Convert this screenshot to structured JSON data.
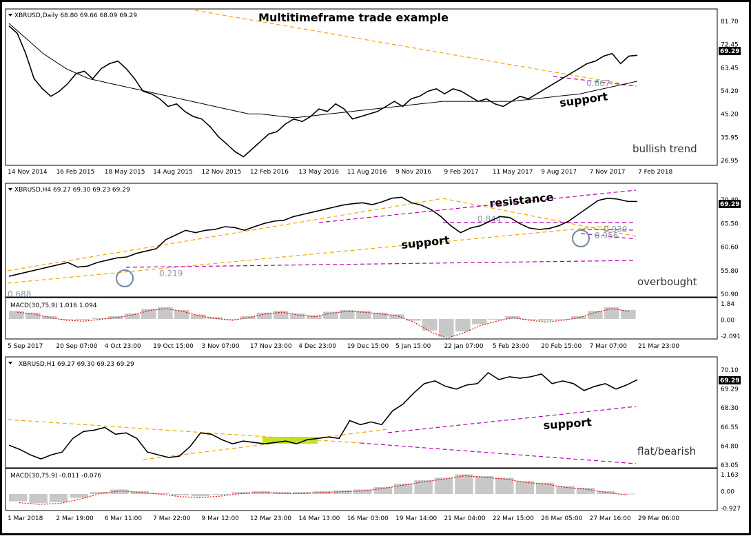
{
  "title": "Multitimeframe trade example",
  "colors": {
    "price": "#000000",
    "sma": "#000000",
    "trend_yellow": "#f0a500",
    "trend_purple": "#b400b4",
    "macd_signal": "#e00000",
    "macd_hist": "#c8c8c8",
    "highlight": "#b5e000",
    "circle": "#6f86a0",
    "price_tag_bg": "#000000",
    "price_tag_fg": "#ffffff"
  },
  "chart_data": [
    {
      "type": "line",
      "symbol_info": "XBRUSD,Daily  68.80 69.66 68.09 69.29",
      "y_ticks": [
        "81.70",
        "72.45",
        "63.45",
        "54.20",
        "45.20",
        "35.95",
        "26.95"
      ],
      "price_tag": "69.29",
      "x_ticks": [
        "14 Nov 2014",
        "16 Feb 2015",
        "18 May 2015",
        "14 Aug 2015",
        "12 Nov 2015",
        "12 Feb 2016",
        "13 May 2016",
        "11 Aug 2016",
        "9 Nov 2016",
        "9 Feb 2017",
        "11 May 2017",
        "9 Aug 2017",
        "7 Nov 2017",
        "7 Feb 2018"
      ],
      "series": [
        {
          "values": [
            81,
            78,
            70,
            60,
            56,
            53,
            55,
            58,
            62,
            63,
            60,
            64,
            66,
            67,
            64,
            60,
            55,
            54,
            52,
            49,
            50,
            47,
            45,
            44,
            41,
            37,
            34,
            31,
            29,
            32,
            35,
            38,
            39,
            42,
            44,
            43,
            45,
            48,
            47,
            50,
            48,
            44,
            45,
            46,
            47,
            49,
            51,
            49,
            52,
            53,
            55,
            56,
            54,
            56,
            55,
            53,
            51,
            52,
            50,
            49,
            51,
            53,
            52,
            54,
            56,
            58,
            60,
            62,
            64,
            66,
            67,
            69,
            70,
            66,
            69,
            69.29
          ]
        },
        {
          "values": [
            82,
            78,
            74,
            70,
            67,
            64,
            62,
            60,
            59,
            58,
            57,
            56,
            55,
            54,
            53,
            52,
            51,
            50,
            49,
            48,
            47,
            46,
            46,
            45.5,
            45,
            44.5,
            45,
            45.5,
            46,
            46.5,
            47,
            47.5,
            48,
            48.5,
            49,
            49.5,
            50,
            50.5,
            51,
            51,
            51,
            51,
            51,
            51,
            51,
            51.5,
            52,
            52.5,
            53,
            53.5,
            54,
            55,
            56,
            57,
            58,
            59
          ]
        }
      ],
      "annotations": {
        "support": "support",
        "trend_label": "bullish trend",
        "fib": "0.667"
      }
    },
    {
      "type": "line",
      "symbol_info": "XBRUSD,H4  69.27 69.30 69.23 69.29",
      "y_ticks": [
        "70.40",
        "65.50",
        "60.60",
        "55.80",
        "50.90"
      ],
      "price_tag": "69.29",
      "series": [
        {
          "values": [
            53,
            53.5,
            54,
            54.5,
            55,
            55.5,
            56,
            55,
            55.2,
            56,
            56.5,
            57,
            57.2,
            58,
            58.5,
            59,
            61,
            62,
            63,
            62.5,
            63,
            63.2,
            63.8,
            63.6,
            63,
            63.8,
            64.5,
            65,
            65.2,
            66,
            66.5,
            67,
            67.5,
            68,
            68.5,
            68.8,
            69,
            68.6,
            69.2,
            70,
            70.2,
            69,
            68.5,
            67.5,
            66,
            64,
            62.5,
            63.5,
            64,
            65,
            66,
            65.8,
            64.5,
            63.5,
            63.2,
            63.4,
            64,
            65,
            66.5,
            68,
            69.5,
            70,
            69.8,
            69.3,
            69.29
          ]
        }
      ],
      "annotations": {
        "support": "support",
        "resistance": "resistance",
        "trend_label": "overbought",
        "fib_low": "0.219",
        "fib_mid": "0.844",
        "fib_right": "0.930",
        "fib_right2": "0.956",
        "fib_corner": "0.688"
      }
    },
    {
      "type": "bar",
      "indicator": "MACD(30,75,9)  1.016 1.094",
      "y_ticks": [
        "1.84",
        "0.00",
        "-2.091"
      ],
      "x_ticks": [
        "5 Sep 2017",
        "20 Sep 07:00",
        "4 Oct 23:00",
        "19 Oct 15:00",
        "3 Nov 07:00",
        "17 Nov 23:00",
        "4 Dec 23:00",
        "19 Dec 15:00",
        "5 Jan 15:00",
        "22 Jan 07:00",
        "5 Feb 23:00",
        "20 Feb 15:00",
        "7 Mar 07:00",
        "21 Mar 23:00"
      ],
      "values": [
        0.9,
        0.7,
        0.3,
        0,
        -0.1,
        0.1,
        0.3,
        0.6,
        1.1,
        1.3,
        1.0,
        0.5,
        0.2,
        0,
        0.3,
        0.7,
        0.9,
        0.6,
        0.4,
        0.8,
        1.0,
        0.9,
        0.7,
        0.5,
        -0.2,
        -1.3,
        -2.0,
        -1.4,
        -0.6,
        -0.1,
        0.3,
        0,
        -0.2,
        0,
        0.3,
        0.9,
        1.3,
        1.0
      ]
    },
    {
      "type": "line",
      "symbol_info": "XBRUSD,H1  69.27 69.30 69.23 69.29",
      "y_ticks": [
        "70.10",
        "69.29",
        "68.30",
        "66.55",
        "64.80",
        "63.05"
      ],
      "price_tag": "69.29",
      "series": [
        {
          "values": [
            64.5,
            64.2,
            63.8,
            63.5,
            63.8,
            64.0,
            65.0,
            65.5,
            65.6,
            65.8,
            65.3,
            65.4,
            65.0,
            64.0,
            63.8,
            63.6,
            63.7,
            64.4,
            65.4,
            65.3,
            64.9,
            64.6,
            64.8,
            64.7,
            64.6,
            64.7,
            64.8,
            64.6,
            64.9,
            65.0,
            65.1,
            65.0,
            66.3,
            66.0,
            66.2,
            66.0,
            67.0,
            67.5,
            68.3,
            69.0,
            69.2,
            68.8,
            68.6,
            68.9,
            69.0,
            69.8,
            69.3,
            69.5,
            69.4,
            69.5,
            69.7,
            69.0,
            69.2,
            69.0,
            68.5,
            68.8,
            69.0,
            68.6,
            68.9,
            69.29
          ]
        }
      ],
      "annotations": {
        "support": "support",
        "trend_label": "flat/bearish"
      }
    },
    {
      "type": "bar",
      "indicator": "MACD(30,75,9)  -0.011 -0.076",
      "y_ticks": [
        "1.163",
        "0.00",
        "-0.927"
      ],
      "x_ticks": [
        "1 Mar 2018",
        "2 Mar 19:00",
        "6 Mar 11:00",
        "7 Mar 22:00",
        "9 Mar 12:00",
        "12 Mar 23:00",
        "14 Mar 13:00",
        "16 Mar 03:00",
        "19 Mar 14:00",
        "21 Mar 04:00",
        "22 Mar 15:00",
        "26 Mar 05:00",
        "27 Mar 16:00",
        "29 Mar 06:00"
      ],
      "values": [
        -0.5,
        -0.6,
        -0.55,
        -0.3,
        0.05,
        0.2,
        0.1,
        0,
        -0.15,
        -0.2,
        -0.1,
        0.05,
        0.1,
        0.05,
        0.05,
        0.1,
        0.15,
        0.2,
        0.35,
        0.55,
        0.75,
        0.9,
        1.1,
        1.0,
        0.9,
        0.7,
        0.6,
        0.4,
        0.3,
        0.1,
        -0.05
      ]
    }
  ]
}
